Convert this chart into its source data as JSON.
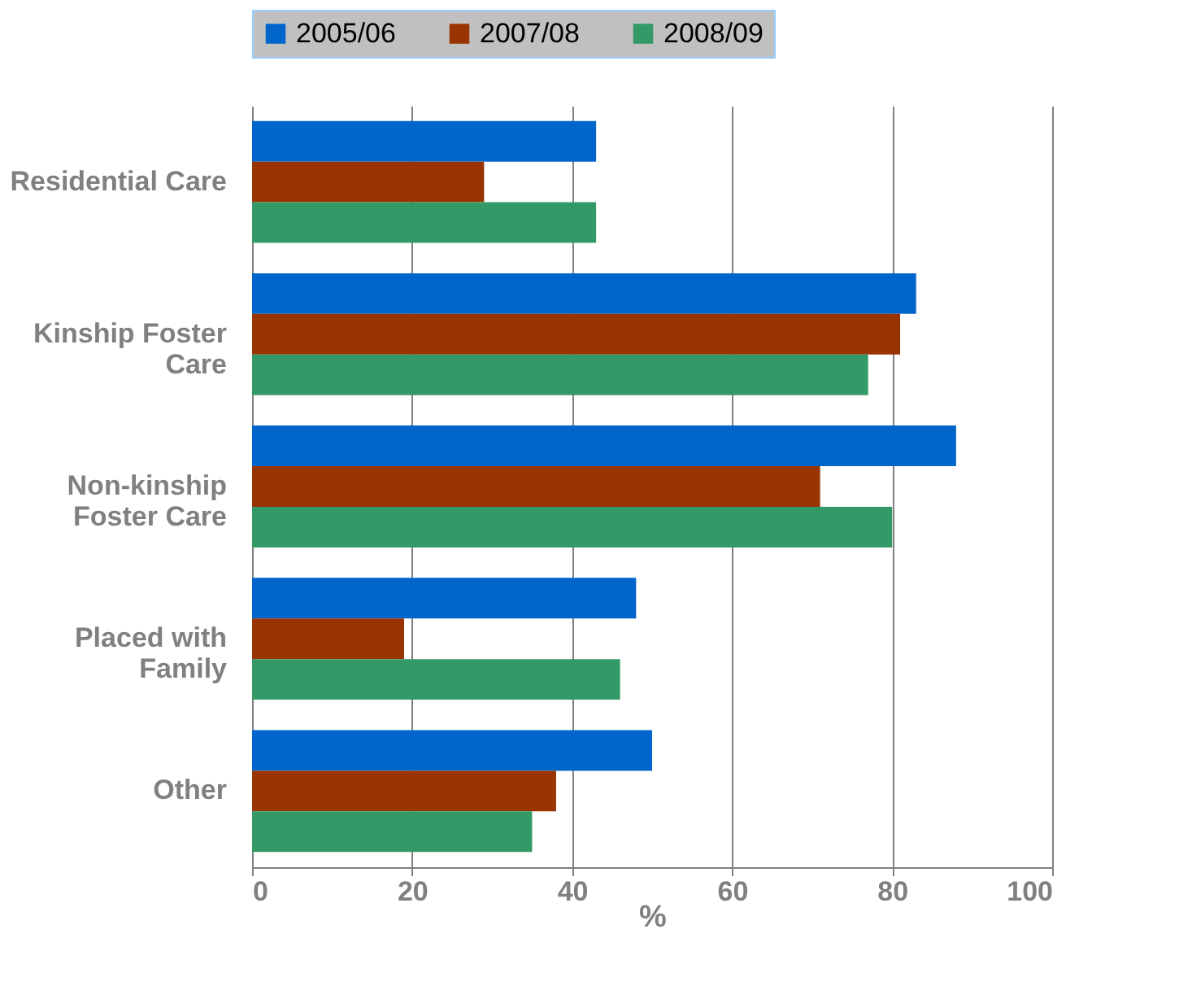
{
  "chart_data": {
    "type": "bar",
    "orientation": "horizontal",
    "xlabel": "%",
    "categories": [
      "Residential Care",
      "Kinship Foster Care",
      "Non-kinship Foster Care",
      "Placed with Family",
      "Other"
    ],
    "series": [
      {
        "name": "2005/06",
        "color": "#0066cc",
        "values": [
          43,
          83,
          88,
          48,
          50
        ]
      },
      {
        "name": "2007/08",
        "color": "#993300",
        "values": [
          29,
          81,
          71,
          19,
          38
        ]
      },
      {
        "name": "2008/09",
        "color": "#339966",
        "values": [
          43,
          77,
          80,
          46,
          35
        ]
      }
    ],
    "xlim": [
      0,
      100
    ],
    "xticks": [
      0,
      20,
      40,
      60,
      80,
      100
    ],
    "grid": "x",
    "legend": "top"
  }
}
